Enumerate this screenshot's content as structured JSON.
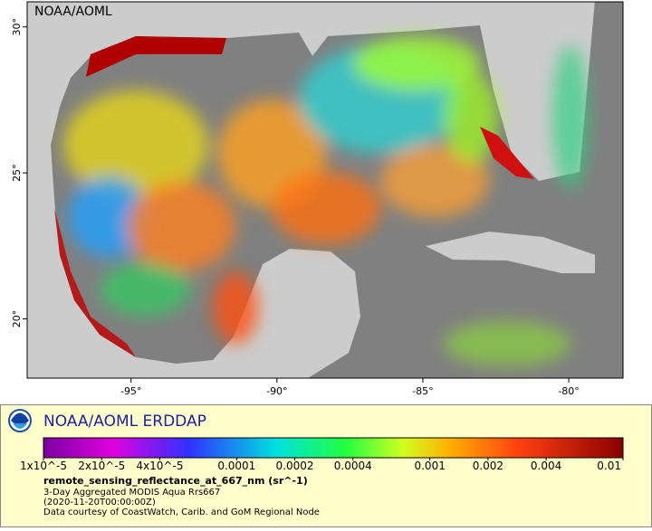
{
  "map": {
    "watermark": "NOAA/AOML",
    "xlim": [
      -98.56,
      -78.14
    ],
    "ylim": [
      17.97,
      30.86
    ],
    "xticks": [
      {
        "value": -95,
        "label": "-95°"
      },
      {
        "value": -90,
        "label": "-90°"
      },
      {
        "value": -85,
        "label": "-85°"
      },
      {
        "value": -80,
        "label": "-80°"
      }
    ],
    "yticks": [
      {
        "value": 20,
        "label": "20°"
      },
      {
        "value": 25,
        "label": "25°"
      },
      {
        "value": 30,
        "label": "30°"
      }
    ]
  },
  "legend": {
    "title": "NOAA/AOML ERDDAP",
    "scale": "log",
    "range": [
      1e-05,
      0.01
    ],
    "ticks": [
      {
        "value": 1e-05,
        "label": "1x10^-5"
      },
      {
        "value": 2e-05,
        "label": "2x10^-5"
      },
      {
        "value": 4e-05,
        "label": "4x10^-5"
      },
      {
        "value": 0.0001,
        "label": "0.0001"
      },
      {
        "value": 0.0002,
        "label": "0.0002"
      },
      {
        "value": 0.0004,
        "label": "0.0004"
      },
      {
        "value": 0.001,
        "label": "0.001"
      },
      {
        "value": 0.002,
        "label": "0.002"
      },
      {
        "value": 0.004,
        "label": "0.004"
      },
      {
        "value": 0.01,
        "label": "0.01"
      }
    ],
    "variable": "remote_sensing_reflectance_at_667_nm (sr^-1)",
    "dataset": "3-Day Aggregated MODIS Aqua Rrs667",
    "time": "(2020-11-20T00:00:00Z)",
    "credit": "Data courtesy of CoastWatch, Carib. and GoM Regional Node"
  }
}
